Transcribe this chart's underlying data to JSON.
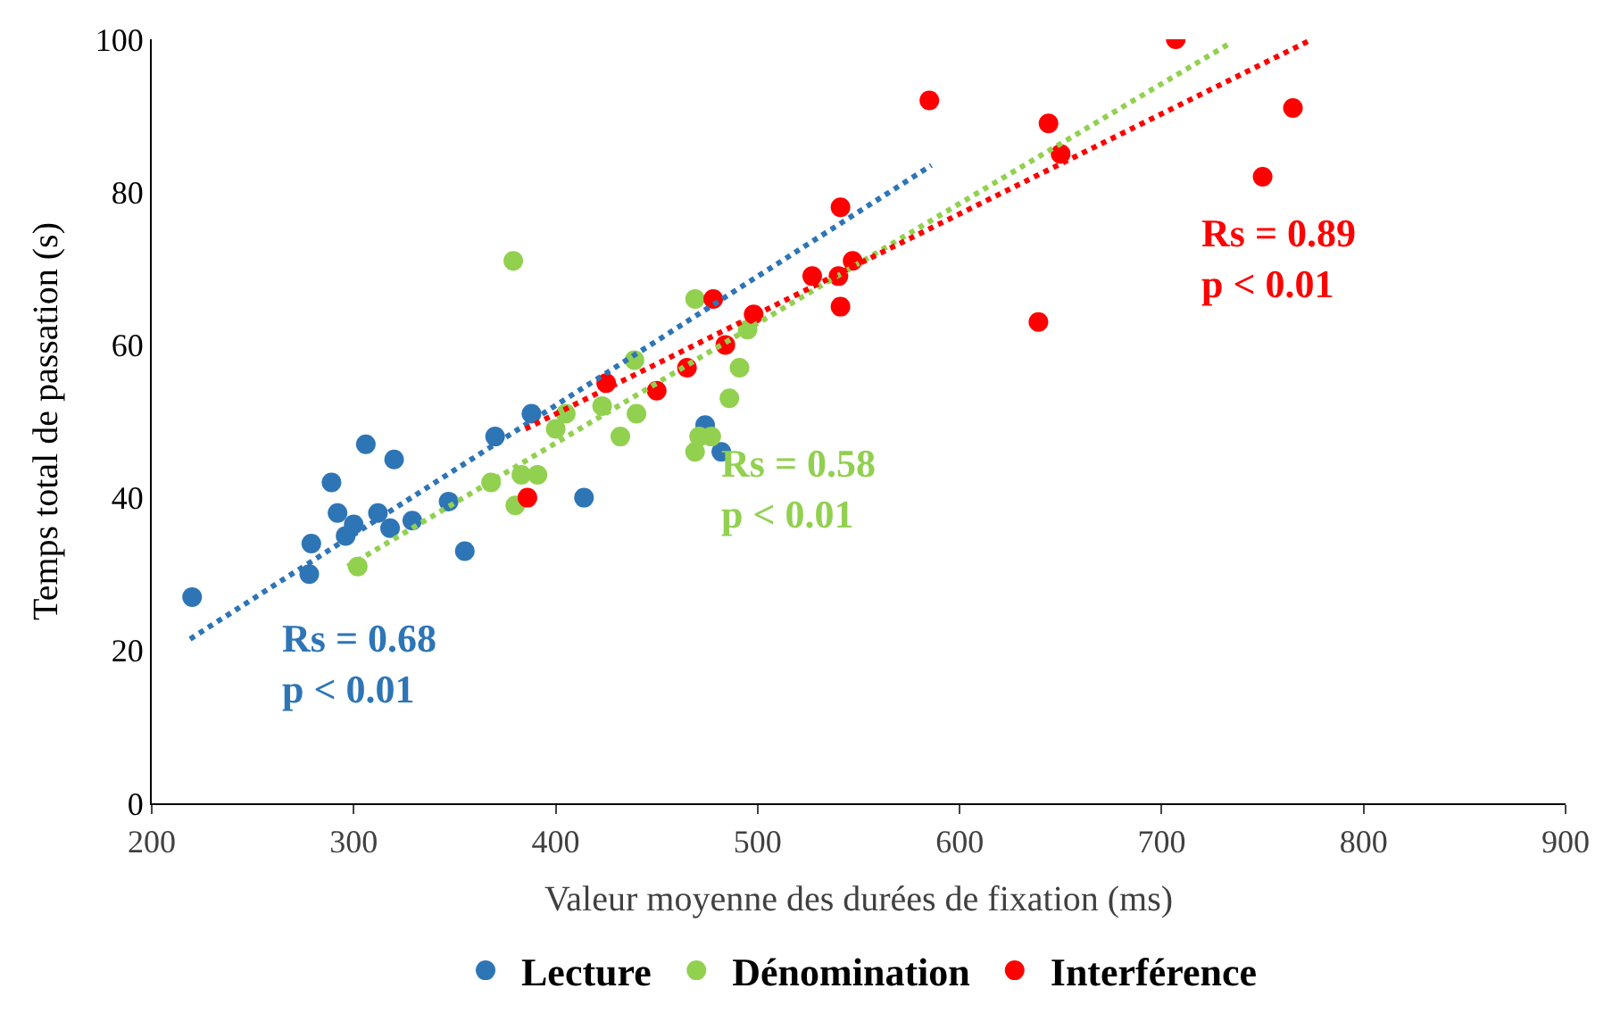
{
  "chart_data": {
    "type": "scatter",
    "xlabel": "Valeur moyenne des durées de fixation (ms)",
    "ylabel": "Temps total de passation (s)",
    "xlim": [
      200,
      900
    ],
    "xticks": [
      200,
      300,
      400,
      500,
      600,
      700,
      800,
      900
    ],
    "ylim": [
      0,
      100
    ],
    "yticks": [
      0,
      20,
      40,
      60,
      80,
      100
    ],
    "legend": "bottom",
    "marker": "circle",
    "series": [
      {
        "name": "Lecture",
        "color": "#2e75b6",
        "x": [
          220,
          278,
          279,
          289,
          292,
          296,
          300,
          306,
          312,
          318,
          320,
          329,
          347,
          355,
          370,
          388,
          414,
          474,
          482
        ],
        "values": [
          27,
          30,
          34,
          42,
          38,
          35,
          36.5,
          47,
          38,
          36,
          45,
          37,
          39.5,
          33,
          48,
          51,
          40,
          49.5,
          46
        ]
      },
      {
        "name": "Dénomination",
        "color": "#92d050",
        "x": [
          302,
          368,
          380,
          383,
          391,
          379,
          400,
          405,
          423,
          432,
          440,
          439,
          469,
          495,
          491,
          486,
          471,
          477,
          469
        ],
        "values": [
          31,
          42,
          39,
          43,
          43,
          71,
          49,
          51,
          52,
          48,
          51,
          58,
          66,
          62,
          57,
          53,
          48,
          48,
          46
        ]
      },
      {
        "name": "Interférence",
        "color": "#ff0000",
        "x": [
          386,
          425,
          450,
          465,
          484,
          498,
          478,
          527,
          540,
          547,
          541,
          541,
          585,
          644,
          650,
          639,
          707,
          765,
          750
        ],
        "values": [
          40,
          55,
          54,
          57,
          60,
          64,
          66,
          69,
          69,
          71,
          65,
          78,
          92,
          89,
          85,
          63,
          100,
          91,
          82
        ]
      },
      {
        "type": "line",
        "color": "#2e75b6",
        "line_style": "dotted",
        "marker": "none",
        "x": [
          219,
          586
        ],
        "values": [
          21.5,
          83.5
        ]
      },
      {
        "type": "line",
        "color": "#92d050",
        "line_style": "dotted",
        "marker": "none",
        "x": [
          297,
          734
        ],
        "values": [
          31,
          99.5
        ]
      },
      {
        "type": "line",
        "color": "#ff0000",
        "line_style": "dotted",
        "marker": "none",
        "x": [
          385,
          773
        ],
        "values": [
          49,
          99.8
        ]
      }
    ],
    "annotations": [
      "Rs = 0.68\np < 0.01",
      "Rs = 0.58\np < 0.01",
      "Rs = 0.89\np < 0.01"
    ]
  }
}
